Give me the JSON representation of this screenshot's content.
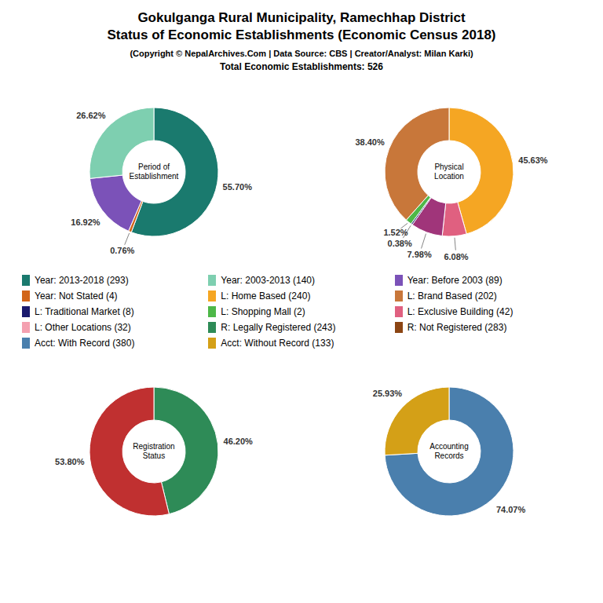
{
  "title": "Gokulganga Rural Municipality, Ramechhap District\nStatus of Economic Establishments (Economic Census 2018)",
  "subtitle": "(Copyright © NepalArchives.Com | Data Source: CBS | Creator/Analyst: Milan Karki)\nTotal Economic Establishments: 526",
  "chart_data": [
    {
      "type": "pie",
      "title": "Period of\nEstablishment",
      "values": [
        55.7,
        0.76,
        16.92,
        26.62
      ],
      "colors": [
        "#1a7a6e",
        "#d2651a",
        "#7b52b8",
        "#7ecfb0"
      ],
      "data_labels": true,
      "value_labels": [
        "55.70%",
        "0.76%",
        "16.92%",
        "26.62%"
      ]
    },
    {
      "type": "pie",
      "title": "Physical\nLocation",
      "values": [
        45.63,
        6.08,
        7.98,
        0.38,
        1.52,
        38.4
      ],
      "colors": [
        "#f5a623",
        "#e06080",
        "#a0357a",
        "#1a1a6e",
        "#4db848",
        "#c8773a"
      ],
      "data_labels": true,
      "value_labels": [
        "45.63%",
        "6.08%",
        "7.98%",
        "0.38%",
        "1.52%",
        "38.40%"
      ]
    },
    {
      "type": "pie",
      "title": "Registration\nStatus",
      "values": [
        46.2,
        53.8
      ],
      "colors": [
        "#2e8b57",
        "#c03030"
      ],
      "data_labels": true,
      "value_labels": [
        "46.20%",
        "53.80%"
      ]
    },
    {
      "type": "pie",
      "title": "Accounting\nRecords",
      "values": [
        74.07,
        25.93
      ],
      "colors": [
        "#4a7fad",
        "#d4a017"
      ],
      "data_labels": true,
      "value_labels": [
        "74.07%",
        "25.93%"
      ]
    }
  ],
  "series": [
    {
      "name": "Year: 2013-2018 (293)",
      "color": "#1a7a6e"
    },
    {
      "name": "Year: 2003-2013 (140)",
      "color": "#7ecfb0"
    },
    {
      "name": "Year: Before 2003 (89)",
      "color": "#7b52b8"
    },
    {
      "name": "Year: Not Stated (4)",
      "color": "#d2651a"
    },
    {
      "name": "L: Home Based (240)",
      "color": "#f5a623"
    },
    {
      "name": "L: Brand Based (202)",
      "color": "#c8773a"
    },
    {
      "name": "L: Traditional Market (8)",
      "color": "#1a1a6e"
    },
    {
      "name": "L: Shopping Mall (2)",
      "color": "#4db848"
    },
    {
      "name": "L: Exclusive Building (42)",
      "color": "#e06080"
    },
    {
      "name": "L: Other Locations (32)",
      "color": "#f4a0b0"
    },
    {
      "name": "R: Legally Registered (243)",
      "color": "#2e8b57"
    },
    {
      "name": "R: Not Registered (283)",
      "color": "#8b4513"
    },
    {
      "name": "Acct: With Record (380)",
      "color": "#4a7fad"
    },
    {
      "name": "Acct: Without Record (133)",
      "color": "#d4a017"
    }
  ]
}
